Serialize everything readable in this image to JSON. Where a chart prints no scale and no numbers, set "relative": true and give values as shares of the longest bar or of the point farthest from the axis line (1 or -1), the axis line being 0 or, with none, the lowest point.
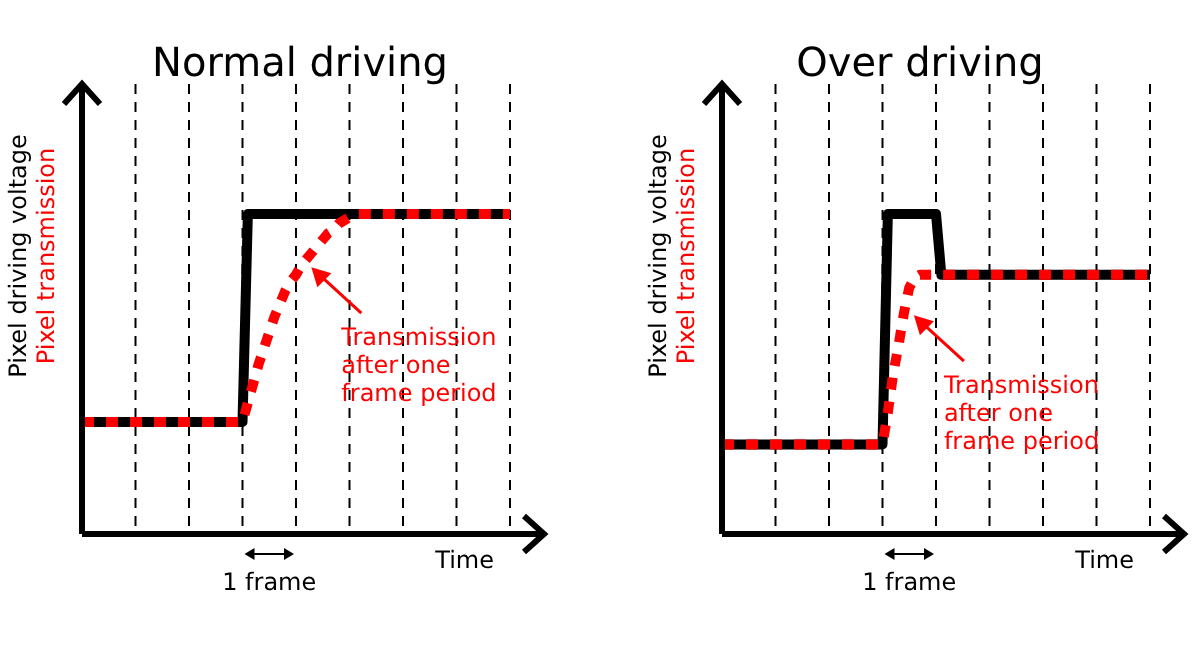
{
  "chart_data": [
    {
      "type": "line",
      "title": "Normal driving",
      "xlabel": "Time",
      "relative": true,
      "grid": "x",
      "categories": [
        null,
        null,
        null,
        null,
        null,
        null,
        null,
        null,
        null,
        null,
        null,
        null,
        null,
        null,
        null,
        null,
        null,
        null,
        null,
        null,
        null,
        null,
        null,
        null,
        null,
        null,
        null,
        null,
        null,
        null,
        null,
        null,
        null,
        null,
        null,
        null,
        null,
        null,
        null,
        null,
        null,
        null,
        null,
        null,
        null,
        null,
        null,
        null,
        null,
        null,
        null,
        null,
        null,
        null,
        null,
        null,
        null,
        null,
        null,
        null,
        null,
        null,
        null,
        null,
        null,
        null,
        null,
        null,
        null,
        null,
        null,
        null,
        null,
        null,
        null,
        null,
        null,
        null,
        null,
        null,
        null
      ],
      "series": [
        {
          "name": "Pixel driving voltage",
          "color": "#000000",
          "line_style": "solid",
          "values": [
            0.35,
            0.35,
            0.35,
            0.35,
            0.35,
            0.35,
            0.35,
            0.35,
            0.35,
            0.35,
            0.35,
            0.35,
            0.35,
            0.35,
            0.35,
            0.35,
            0.35,
            0.35,
            0.35,
            0.35,
            0.35,
            0.35,
            0.35,
            0.35,
            0.35,
            0.35,
            0.35,
            0.35,
            0.35,
            0.35,
            0.35,
            1,
            1,
            1,
            1,
            1,
            1,
            1,
            1,
            1,
            1,
            1,
            1,
            1,
            1,
            1,
            1,
            1,
            1,
            1,
            1,
            1,
            1,
            1,
            1,
            1,
            1,
            1,
            1,
            1,
            1,
            1,
            1,
            1,
            1,
            1,
            1,
            1,
            1,
            1,
            1,
            1,
            1,
            1,
            1,
            1,
            1,
            1,
            1,
            1,
            1
          ]
        },
        {
          "name": "Pixel transmission",
          "color": "#ff0000",
          "line_style": "dashed",
          "values": [
            0.35,
            0.35,
            0.35,
            0.35,
            0.35,
            0.35,
            0.35,
            0.35,
            0.35,
            0.35,
            0.35,
            0.35,
            0.35,
            0.35,
            0.35,
            0.35,
            0.35,
            0.35,
            0.35,
            0.35,
            0.35,
            0.35,
            0.35,
            0.35,
            0.35,
            0.35,
            0.35,
            0.35,
            0.35,
            0.35,
            0.35,
            0.41,
            0.47,
            0.53,
            0.58,
            0.63,
            0.68,
            0.72,
            0.76,
            0.79,
            0.81,
            0.84,
            0.86,
            0.88,
            0.9,
            0.92,
            0.94,
            0.95,
            0.97,
            0.98,
            0.99,
            1,
            1,
            1,
            1,
            1,
            1,
            1,
            1,
            1,
            1,
            1,
            1,
            1,
            1,
            1,
            1,
            1,
            1,
            1,
            1,
            1,
            1,
            1,
            1,
            1,
            1,
            1,
            1,
            1,
            1
          ]
        }
      ],
      "annotations": [
        "Transmission after one frame period",
        "1 frame"
      ]
    },
    {
      "type": "line",
      "title": "Over driving",
      "xlabel": "Time",
      "relative": true,
      "grid": "x",
      "categories": [
        null,
        null,
        null,
        null,
        null,
        null,
        null,
        null,
        null,
        null,
        null,
        null,
        null,
        null,
        null,
        null,
        null,
        null,
        null,
        null,
        null,
        null,
        null,
        null,
        null,
        null,
        null,
        null,
        null,
        null,
        null,
        null,
        null,
        null,
        null,
        null,
        null,
        null,
        null,
        null,
        null,
        null,
        null,
        null,
        null,
        null,
        null,
        null,
        null,
        null,
        null,
        null,
        null,
        null,
        null,
        null,
        null,
        null,
        null,
        null,
        null,
        null,
        null,
        null,
        null,
        null,
        null,
        null,
        null,
        null,
        null,
        null,
        null,
        null,
        null,
        null,
        null,
        null,
        null,
        null,
        null
      ],
      "series": [
        {
          "name": "Pixel driving voltage",
          "color": "#000000",
          "line_style": "solid",
          "values": [
            0.28,
            0.28,
            0.28,
            0.28,
            0.28,
            0.28,
            0.28,
            0.28,
            0.28,
            0.28,
            0.28,
            0.28,
            0.28,
            0.28,
            0.28,
            0.28,
            0.28,
            0.28,
            0.28,
            0.28,
            0.28,
            0.28,
            0.28,
            0.28,
            0.28,
            0.28,
            0.28,
            0.28,
            0.28,
            0.28,
            0.28,
            1,
            1,
            1,
            1,
            1,
            1,
            1,
            1,
            1,
            1,
            0.81,
            0.81,
            0.81,
            0.81,
            0.81,
            0.81,
            0.81,
            0.81,
            0.81,
            0.81,
            0.81,
            0.81,
            0.81,
            0.81,
            0.81,
            0.81,
            0.81,
            0.81,
            0.81,
            0.81,
            0.81,
            0.81,
            0.81,
            0.81,
            0.81,
            0.81,
            0.81,
            0.81,
            0.81,
            0.81,
            0.81,
            0.81,
            0.81,
            0.81,
            0.81,
            0.81,
            0.81,
            0.81,
            0.81,
            0.81
          ]
        },
        {
          "name": "Pixel transmission",
          "color": "#ff0000",
          "line_style": "dashed",
          "values": [
            0.28,
            0.28,
            0.28,
            0.28,
            0.28,
            0.28,
            0.28,
            0.28,
            0.28,
            0.28,
            0.28,
            0.28,
            0.28,
            0.28,
            0.28,
            0.28,
            0.28,
            0.28,
            0.28,
            0.28,
            0.28,
            0.28,
            0.28,
            0.28,
            0.28,
            0.28,
            0.28,
            0.28,
            0.28,
            0.28,
            0.28,
            0.38,
            0.5,
            0.59,
            0.69,
            0.77,
            0.8,
            0.81,
            0.81,
            0.81,
            0.81,
            0.81,
            0.81,
            0.81,
            0.81,
            0.81,
            0.81,
            0.81,
            0.81,
            0.81,
            0.81,
            0.81,
            0.81,
            0.81,
            0.81,
            0.81,
            0.81,
            0.81,
            0.81,
            0.81,
            0.81,
            0.81,
            0.81,
            0.81,
            0.81,
            0.81,
            0.81,
            0.81,
            0.81,
            0.81,
            0.81,
            0.81,
            0.81,
            0.81,
            0.81,
            0.81,
            0.81,
            0.81,
            0.81,
            0.81,
            0.81
          ]
        }
      ],
      "annotations": [
        "Transmission after one frame period",
        "1 frame"
      ]
    }
  ]
}
